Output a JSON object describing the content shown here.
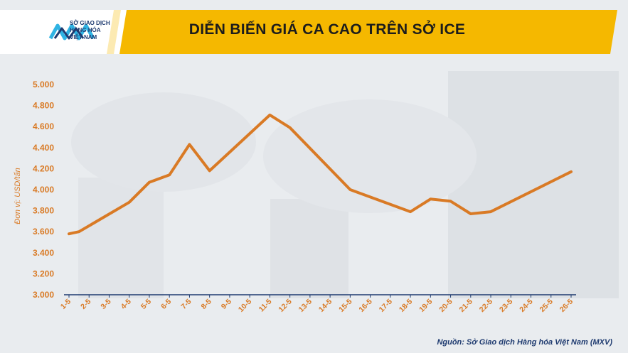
{
  "header": {
    "logo_line1": "SỞ GIAO DỊCH",
    "logo_line2": "HÀNG HÓA",
    "logo_line3": "VIỆT NAM"
  },
  "chart_data": {
    "type": "line",
    "title": "DIỄN BIẾN GIÁ CA CAO TRÊN SỞ ICE",
    "ylabel": "Đơn vị: USD/tấn",
    "xlabel": "",
    "ylim": [
      3000,
      5000
    ],
    "yticks": [
      "3.000",
      "3.200",
      "3.400",
      "3.600",
      "3.800",
      "4.000",
      "4.200",
      "4.400",
      "4.600",
      "4.800",
      "5.000"
    ],
    "ytick_values": [
      3000,
      3200,
      3400,
      3600,
      3800,
      4000,
      4200,
      4400,
      4600,
      4800,
      5000
    ],
    "grid": false,
    "line_color": "#d97a25",
    "categories": [
      "1-5",
      "2-5",
      "3-5",
      "4-5",
      "5-5",
      "6-5",
      "7-5",
      "8-5",
      "9-5",
      "10-5",
      "11-5",
      "12-5",
      "13-5",
      "14-5",
      "15-5",
      "16-5",
      "17-5",
      "18-5",
      "19-5",
      "20-5",
      "21-5",
      "22-5",
      "23-5",
      "24-5",
      "25-5",
      "26-5"
    ],
    "points": [
      {
        "x": 0.0,
        "y": 3580
      },
      {
        "x": 0.5,
        "y": 3600
      },
      {
        "x": 3.0,
        "y": 3880
      },
      {
        "x": 4.0,
        "y": 4070
      },
      {
        "x": 5.0,
        "y": 4140
      },
      {
        "x": 6.0,
        "y": 4430
      },
      {
        "x": 7.0,
        "y": 4180
      },
      {
        "x": 10.0,
        "y": 4710
      },
      {
        "x": 11.0,
        "y": 4590
      },
      {
        "x": 14.0,
        "y": 4000
      },
      {
        "x": 17.0,
        "y": 3790
      },
      {
        "x": 18.0,
        "y": 3910
      },
      {
        "x": 19.0,
        "y": 3890
      },
      {
        "x": 20.0,
        "y": 3770
      },
      {
        "x": 21.0,
        "y": 3790
      },
      {
        "x": 25.0,
        "y": 4170
      }
    ]
  },
  "source": "Nguồn: Sở Giao dịch Hàng hóa Việt Nam (MXV)"
}
